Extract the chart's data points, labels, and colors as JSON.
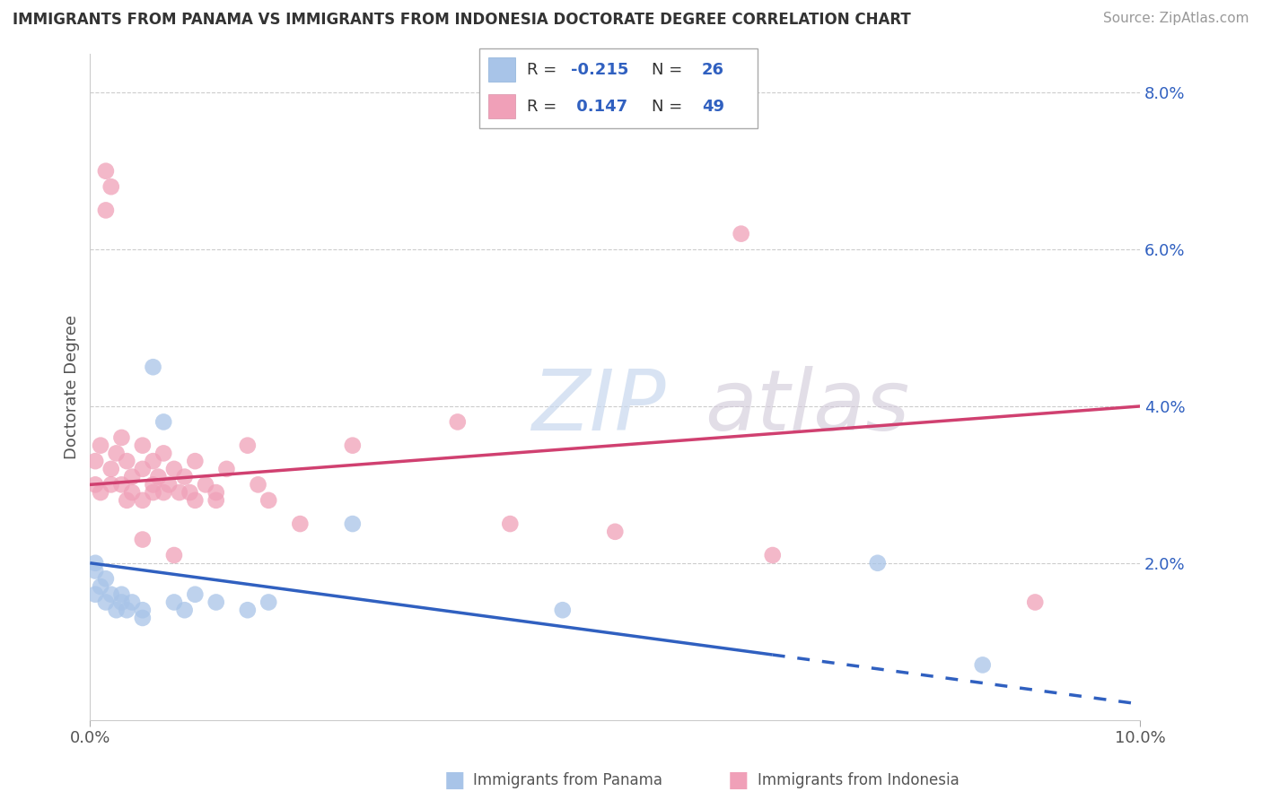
{
  "title": "IMMIGRANTS FROM PANAMA VS IMMIGRANTS FROM INDONESIA DOCTORATE DEGREE CORRELATION CHART",
  "source": "Source: ZipAtlas.com",
  "ylabel": "Doctorate Degree",
  "xmin": 0.0,
  "xmax": 10.0,
  "ymin": 0.0,
  "ymax": 8.5,
  "panama_color": "#a8c4e8",
  "indonesia_color": "#f0a0b8",
  "panama_line_color": "#3060c0",
  "indonesia_line_color": "#d04070",
  "watermark_zip": "ZIP",
  "watermark_atlas": "atlas",
  "panama_R": -0.215,
  "panama_N": 26,
  "indonesia_R": 0.147,
  "indonesia_N": 49,
  "panama_x": [
    0.05,
    0.05,
    0.05,
    0.1,
    0.15,
    0.15,
    0.2,
    0.25,
    0.3,
    0.3,
    0.35,
    0.4,
    0.5,
    0.5,
    0.6,
    0.7,
    0.8,
    0.9,
    1.0,
    1.2,
    1.5,
    1.7,
    2.5,
    4.5,
    7.5,
    8.5
  ],
  "panama_y": [
    1.9,
    2.0,
    1.6,
    1.7,
    1.5,
    1.8,
    1.6,
    1.4,
    1.5,
    1.6,
    1.4,
    1.5,
    1.3,
    1.4,
    4.5,
    3.8,
    1.5,
    1.4,
    1.6,
    1.5,
    1.4,
    1.5,
    2.5,
    1.4,
    2.0,
    0.7
  ],
  "indonesia_x": [
    0.05,
    0.05,
    0.1,
    0.1,
    0.15,
    0.15,
    0.2,
    0.2,
    0.25,
    0.3,
    0.3,
    0.35,
    0.35,
    0.4,
    0.4,
    0.5,
    0.5,
    0.5,
    0.6,
    0.6,
    0.65,
    0.7,
    0.7,
    0.75,
    0.8,
    0.85,
    0.9,
    0.95,
    1.0,
    1.0,
    1.1,
    1.2,
    1.3,
    1.5,
    1.6,
    1.7,
    2.0,
    2.5,
    3.5,
    4.0,
    5.0,
    6.2,
    6.5,
    9.0,
    0.2,
    0.5,
    0.6,
    0.8,
    1.2
  ],
  "indonesia_y": [
    3.3,
    3.0,
    3.5,
    2.9,
    7.0,
    6.5,
    6.8,
    3.2,
    3.4,
    3.6,
    3.0,
    3.3,
    2.8,
    3.1,
    2.9,
    3.2,
    2.8,
    3.5,
    3.0,
    3.3,
    3.1,
    2.9,
    3.4,
    3.0,
    3.2,
    2.9,
    3.1,
    2.9,
    3.3,
    2.8,
    3.0,
    2.9,
    3.2,
    3.5,
    3.0,
    2.8,
    2.5,
    3.5,
    3.8,
    2.5,
    2.4,
    6.2,
    2.1,
    1.5,
    3.0,
    2.3,
    2.9,
    2.1,
    2.8
  ],
  "panama_line_x0": 0.0,
  "panama_line_y0": 2.0,
  "panama_line_x1": 10.0,
  "panama_line_y1": 0.2,
  "panama_solid_end": 6.5,
  "indonesia_line_x0": 0.0,
  "indonesia_line_y0": 3.0,
  "indonesia_line_x1": 10.0,
  "indonesia_line_y1": 4.0,
  "legend_R_color": "#3060c0",
  "legend_N_color": "#3060c0",
  "legend_text_color": "#333333"
}
